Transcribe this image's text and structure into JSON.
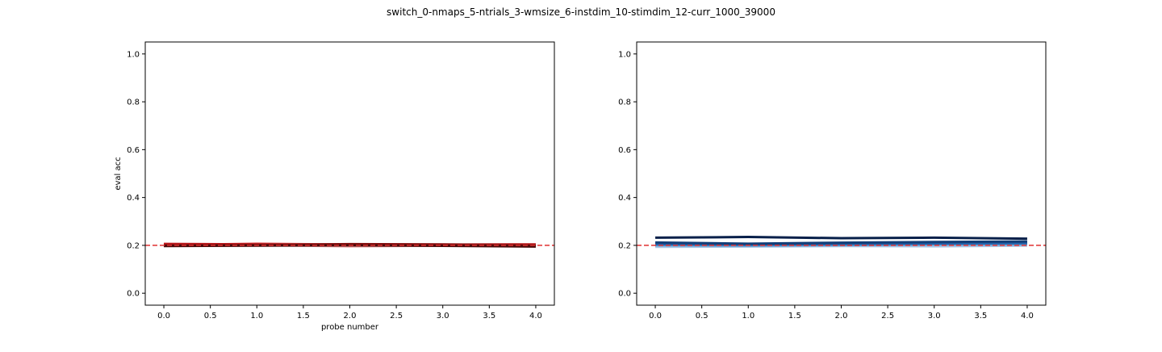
{
  "figure": {
    "suptitle": "switch_0-nmaps_5-ntrials_3-wmsize_6-instdim_10-stimdim_12-curr_1000_39000"
  },
  "chart_data": [
    {
      "type": "line",
      "title": "",
      "xlabel": "probe number",
      "ylabel": "eval acc",
      "xlim": [
        -0.2,
        4.2
      ],
      "ylim": [
        -0.05,
        1.05
      ],
      "xticks": [
        0.0,
        0.5,
        1.0,
        1.5,
        2.0,
        2.5,
        3.0,
        3.5,
        4.0
      ],
      "xtick_labels": [
        "0.0",
        "0.5",
        "1.0",
        "1.5",
        "2.0",
        "2.5",
        "3.0",
        "3.5",
        "4.0"
      ],
      "yticks": [
        0.0,
        0.2,
        0.4,
        0.6,
        0.8,
        1.0
      ],
      "ytick_labels": [
        "0.0",
        "0.2",
        "0.4",
        "0.6",
        "0.8",
        "1.0"
      ],
      "grid": false,
      "reference_line": {
        "y": 0.2,
        "color": "#e03030",
        "style": "dashed"
      },
      "x": [
        0,
        1,
        2,
        3,
        4
      ],
      "series": [
        {
          "color": "#f0a0a0",
          "values": [
            0.205,
            0.201,
            0.196,
            0.199,
            0.203
          ]
        },
        {
          "color": "#e05050",
          "values": [
            0.201,
            0.207,
            0.203,
            0.2,
            0.198
          ]
        },
        {
          "color": "#c0181c",
          "values": [
            0.206,
            0.204,
            0.201,
            0.203,
            0.204
          ]
        },
        {
          "color": "#8a0f10",
          "values": [
            0.2,
            0.202,
            0.205,
            0.204,
            0.2
          ]
        },
        {
          "color": "#4a0a0a",
          "values": [
            0.197,
            0.199,
            0.2,
            0.198,
            0.195
          ]
        }
      ]
    },
    {
      "type": "line",
      "title": "",
      "xlabel": "",
      "ylabel": "",
      "xlim": [
        -0.2,
        4.2
      ],
      "ylim": [
        -0.05,
        1.05
      ],
      "xticks": [
        0.0,
        0.5,
        1.0,
        1.5,
        2.0,
        2.5,
        3.0,
        3.5,
        4.0
      ],
      "xtick_labels": [
        "0.0",
        "0.5",
        "1.0",
        "1.5",
        "2.0",
        "2.5",
        "3.0",
        "3.5",
        "4.0"
      ],
      "yticks": [
        0.0,
        0.2,
        0.4,
        0.6,
        0.8,
        1.0
      ],
      "ytick_labels": [
        "0.0",
        "0.2",
        "0.4",
        "0.6",
        "0.8",
        "1.0"
      ],
      "grid": false,
      "reference_line": {
        "y": 0.2,
        "color": "#e03030",
        "style": "dashed"
      },
      "x": [
        0,
        1,
        2,
        3,
        4
      ],
      "series": [
        {
          "color": "#a8c8e8",
          "values": [
            0.194,
            0.195,
            0.197,
            0.196,
            0.199
          ]
        },
        {
          "color": "#5a9ad0",
          "values": [
            0.2,
            0.199,
            0.201,
            0.203,
            0.204
          ]
        },
        {
          "color": "#1f5fa8",
          "values": [
            0.205,
            0.203,
            0.206,
            0.208,
            0.21
          ]
        },
        {
          "color": "#123e78",
          "values": [
            0.212,
            0.207,
            0.211,
            0.214,
            0.216
          ]
        },
        {
          "color": "#08204a",
          "values": [
            0.232,
            0.235,
            0.23,
            0.232,
            0.228
          ]
        }
      ]
    }
  ]
}
